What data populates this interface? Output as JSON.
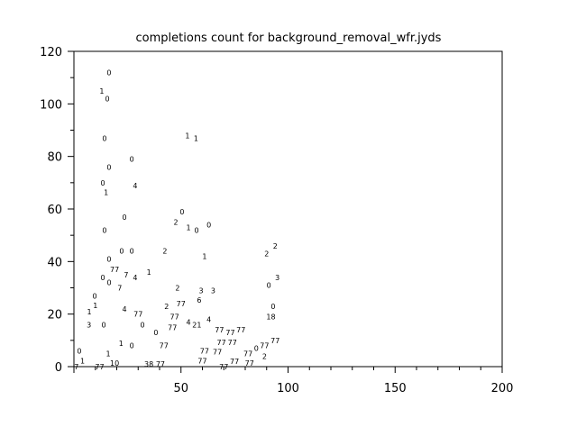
{
  "chart_data": {
    "type": "scatter",
    "title": "completions count for background_removal_wfr.jyds",
    "xlabel": "",
    "ylabel": "",
    "xlim": [
      0,
      200
    ],
    "ylim": [
      0,
      120
    ],
    "x_ticks": [
      50,
      100,
      150,
      200
    ],
    "y_ticks": [
      0,
      20,
      40,
      60,
      80,
      100,
      120
    ],
    "grid": false,
    "marker": "text label",
    "points": [
      {
        "x": 16.4,
        "y": 112,
        "label": "0"
      },
      {
        "x": 13,
        "y": 105,
        "label": "1"
      },
      {
        "x": 15.6,
        "y": 102,
        "label": "0"
      },
      {
        "x": 14.3,
        "y": 87,
        "label": "0"
      },
      {
        "x": 53,
        "y": 88,
        "label": "1"
      },
      {
        "x": 57,
        "y": 87,
        "label": "1"
      },
      {
        "x": 27,
        "y": 79,
        "label": "0"
      },
      {
        "x": 16.4,
        "y": 76,
        "label": "0"
      },
      {
        "x": 13.5,
        "y": 70,
        "label": "0"
      },
      {
        "x": 15,
        "y": 67,
        "label": "1"
      },
      {
        "x": 28.6,
        "y": 69,
        "label": "4"
      },
      {
        "x": 23.6,
        "y": 57,
        "label": "0"
      },
      {
        "x": 50.5,
        "y": 59,
        "label": "0"
      },
      {
        "x": 47.6,
        "y": 55,
        "label": "2"
      },
      {
        "x": 53.5,
        "y": 53,
        "label": "1"
      },
      {
        "x": 57.3,
        "y": 52,
        "label": "0"
      },
      {
        "x": 63,
        "y": 54,
        "label": "0"
      },
      {
        "x": 14.3,
        "y": 52,
        "label": "0"
      },
      {
        "x": 22.3,
        "y": 44,
        "label": "0"
      },
      {
        "x": 27,
        "y": 44,
        "label": "0"
      },
      {
        "x": 42.5,
        "y": 44,
        "label": "2"
      },
      {
        "x": 61,
        "y": 42,
        "label": "1"
      },
      {
        "x": 16.4,
        "y": 41,
        "label": "0"
      },
      {
        "x": 19,
        "y": 37,
        "label": "77"
      },
      {
        "x": 24.4,
        "y": 35,
        "label": "7"
      },
      {
        "x": 28.6,
        "y": 34,
        "label": "4"
      },
      {
        "x": 35,
        "y": 36,
        "label": "1"
      },
      {
        "x": 13.5,
        "y": 34,
        "label": "0"
      },
      {
        "x": 15.6,
        "y": 32,
        "label": "0"
      },
      {
        "x": 21.4,
        "y": 30,
        "label": "7"
      },
      {
        "x": 48.4,
        "y": 30,
        "label": "2"
      },
      {
        "x": 59.4,
        "y": 29,
        "label": "3"
      },
      {
        "x": 65,
        "y": 29,
        "label": "3"
      },
      {
        "x": 58.5,
        "y": 26,
        "label": "6"
      },
      {
        "x": 9.7,
        "y": 27,
        "label": "0"
      },
      {
        "x": 10,
        "y": 25,
        "label": "1"
      },
      {
        "x": 43.3,
        "y": 23,
        "label": "2"
      },
      {
        "x": 50,
        "y": 24,
        "label": "77"
      },
      {
        "x": 8,
        "y": 21,
        "label": "1"
      },
      {
        "x": 23.6,
        "y": 22,
        "label": "4"
      },
      {
        "x": 30,
        "y": 20,
        "label": "77"
      },
      {
        "x": 47,
        "y": 19,
        "label": "77"
      },
      {
        "x": 53.5,
        "y": 17,
        "label": "4"
      },
      {
        "x": 57,
        "y": 16,
        "label": "21"
      },
      {
        "x": 63,
        "y": 18,
        "label": "4"
      },
      {
        "x": 7,
        "y": 16,
        "label": "3"
      },
      {
        "x": 13.9,
        "y": 16,
        "label": "0"
      },
      {
        "x": 32,
        "y": 16,
        "label": "0"
      },
      {
        "x": 46,
        "y": 15,
        "label": "77"
      },
      {
        "x": 38.3,
        "y": 13,
        "label": "0"
      },
      {
        "x": 22,
        "y": 9,
        "label": "1"
      },
      {
        "x": 27,
        "y": 8,
        "label": "0"
      },
      {
        "x": 42,
        "y": 8,
        "label": "77"
      },
      {
        "x": 2.5,
        "y": 6,
        "label": "0"
      },
      {
        "x": 4,
        "y": 3,
        "label": "1"
      },
      {
        "x": 16,
        "y": 5,
        "label": "1"
      },
      {
        "x": 19,
        "y": 2,
        "label": "10"
      },
      {
        "x": 2,
        "y": 0,
        "label": "7"
      },
      {
        "x": 12,
        "y": 0,
        "label": "77"
      },
      {
        "x": 35,
        "y": 1,
        "label": "38"
      },
      {
        "x": 40.4,
        "y": 1,
        "label": "77"
      },
      {
        "x": 94,
        "y": 46,
        "label": "2"
      },
      {
        "x": 90,
        "y": 43,
        "label": "2"
      },
      {
        "x": 95,
        "y": 34,
        "label": "3"
      },
      {
        "x": 91,
        "y": 31,
        "label": "0"
      },
      {
        "x": 93,
        "y": 23,
        "label": "0"
      },
      {
        "x": 92,
        "y": 19,
        "label": "18"
      },
      {
        "x": 78,
        "y": 14,
        "label": "77"
      },
      {
        "x": 76,
        "y": 13,
        "label": "77"
      },
      {
        "x": 74,
        "y": 12,
        "label": "77"
      },
      {
        "x": 71,
        "y": 11,
        "label": "77"
      },
      {
        "x": 73,
        "y": 10,
        "label": "77"
      },
      {
        "x": 94,
        "y": 10,
        "label": "77"
      },
      {
        "x": 89,
        "y": 8,
        "label": "77"
      },
      {
        "x": 86,
        "y": 7,
        "label": "0"
      },
      {
        "x": 67,
        "y": 8,
        "label": "77"
      },
      {
        "x": 61,
        "y": 6,
        "label": "77"
      },
      {
        "x": 83,
        "y": 5,
        "label": "77"
      },
      {
        "x": 89,
        "y": 4,
        "label": "2"
      },
      {
        "x": 60,
        "y": 3,
        "label": "77"
      },
      {
        "x": 75,
        "y": 2,
        "label": "77"
      },
      {
        "x": 82,
        "y": 2,
        "label": "77"
      },
      {
        "x": 70,
        "y": 0,
        "label": "77"
      }
    ]
  }
}
